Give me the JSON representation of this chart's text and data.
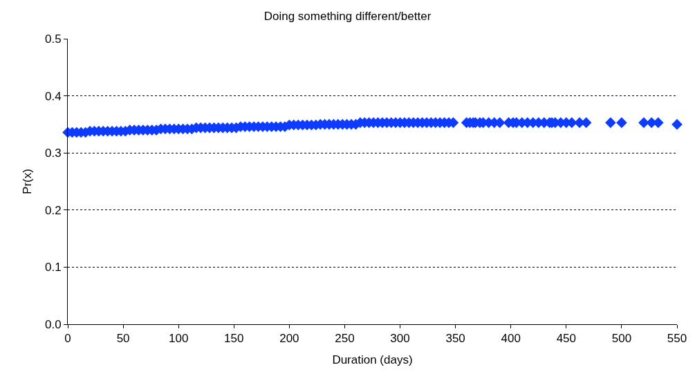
{
  "chart_data": {
    "type": "scatter",
    "title": "Doing something different/better",
    "xlabel": "Duration (days)",
    "ylabel": "Pr(x)",
    "x": [
      0,
      4,
      8,
      12,
      16,
      20,
      24,
      28,
      32,
      36,
      40,
      44,
      48,
      52,
      56,
      60,
      64,
      68,
      72,
      76,
      80,
      84,
      88,
      92,
      96,
      100,
      104,
      108,
      112,
      116,
      120,
      124,
      128,
      132,
      136,
      140,
      144,
      148,
      152,
      156,
      160,
      164,
      168,
      172,
      176,
      180,
      184,
      188,
      192,
      196,
      200,
      204,
      208,
      212,
      216,
      220,
      224,
      228,
      232,
      236,
      240,
      244,
      248,
      252,
      256,
      260,
      264,
      268,
      272,
      276,
      280,
      284,
      288,
      292,
      296,
      300,
      304,
      308,
      312,
      316,
      320,
      324,
      328,
      332,
      336,
      340,
      344,
      348,
      360,
      363,
      366,
      368,
      372,
      375,
      380,
      385,
      390,
      398,
      402,
      405,
      410,
      415,
      420,
      425,
      430,
      435,
      437,
      440,
      445,
      450,
      455,
      462,
      468,
      490,
      500,
      520,
      527,
      533,
      550
    ],
    "series": [
      {
        "color": "#0d3bff",
        "values": [
          0.336,
          0.336,
          0.336,
          0.336,
          0.336,
          0.338,
          0.338,
          0.338,
          0.338,
          0.338,
          0.338,
          0.338,
          0.338,
          0.338,
          0.34,
          0.34,
          0.34,
          0.34,
          0.34,
          0.34,
          0.34,
          0.342,
          0.342,
          0.342,
          0.342,
          0.342,
          0.342,
          0.342,
          0.342,
          0.344,
          0.344,
          0.344,
          0.344,
          0.344,
          0.344,
          0.344,
          0.344,
          0.344,
          0.344,
          0.346,
          0.346,
          0.346,
          0.346,
          0.346,
          0.346,
          0.346,
          0.346,
          0.346,
          0.346,
          0.346,
          0.349,
          0.349,
          0.349,
          0.349,
          0.349,
          0.349,
          0.349,
          0.35,
          0.35,
          0.35,
          0.35,
          0.35,
          0.35,
          0.35,
          0.35,
          0.35,
          0.353,
          0.353,
          0.353,
          0.353,
          0.353,
          0.353,
          0.353,
          0.353,
          0.353,
          0.353,
          0.353,
          0.353,
          0.353,
          0.353,
          0.353,
          0.353,
          0.353,
          0.353,
          0.353,
          0.353,
          0.353,
          0.353,
          0.353,
          0.353,
          0.353,
          0.353,
          0.353,
          0.353,
          0.353,
          0.353,
          0.353,
          0.353,
          0.353,
          0.353,
          0.353,
          0.353,
          0.353,
          0.353,
          0.353,
          0.353,
          0.353,
          0.353,
          0.353,
          0.353,
          0.353,
          0.353,
          0.353,
          0.353,
          0.353,
          0.353,
          0.353,
          0.353,
          0.35
        ]
      }
    ],
    "xlim": [
      0,
      550
    ],
    "xticks": [
      0,
      50,
      100,
      150,
      200,
      250,
      300,
      350,
      400,
      450,
      500,
      550
    ],
    "ylim": [
      0,
      0.5
    ],
    "yticks": [
      {
        "value": 0,
        "label": "0.0"
      },
      {
        "value": 0.1,
        "label": "0.1"
      },
      {
        "value": 0.2,
        "label": "0.2"
      },
      {
        "value": 0.3,
        "label": "0.3"
      },
      {
        "value": 0.4,
        "label": "0.4"
      },
      {
        "value": 0.5,
        "label": "0.5"
      }
    ],
    "grid": "y",
    "marker": "diamond"
  }
}
